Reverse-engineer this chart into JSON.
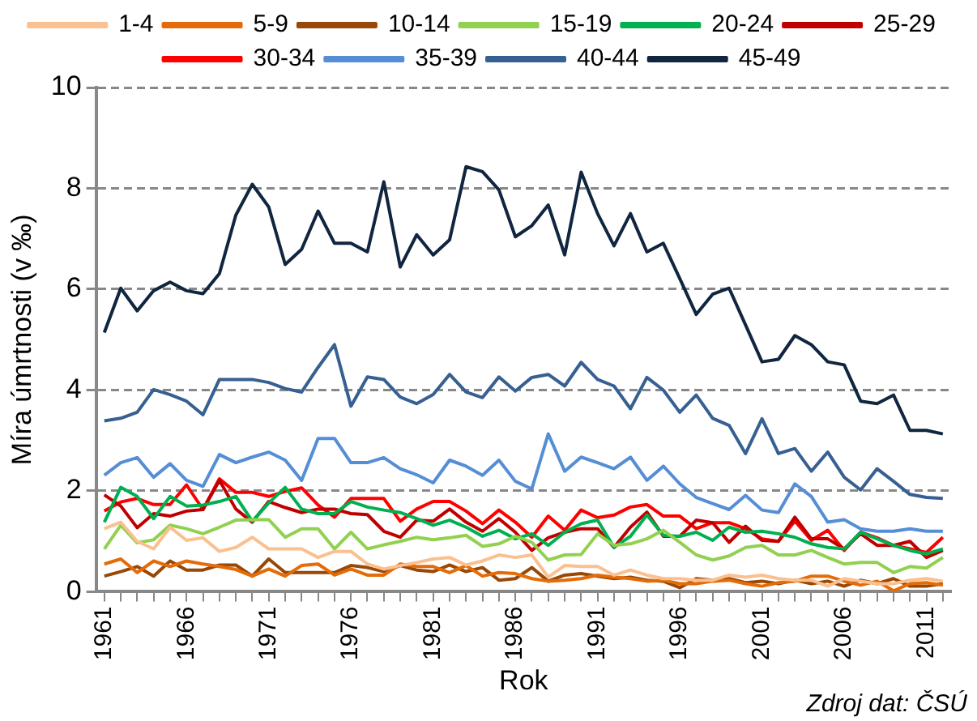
{
  "chart_data": {
    "type": "line",
    "xlabel": "Rok",
    "ylabel": "Míra úmrtnosti (v ‰)",
    "annotations": [
      "Zdroj dat: ČSÚ"
    ],
    "categories": [
      "1961",
      null,
      null,
      null,
      null,
      "1966",
      null,
      null,
      null,
      null,
      "1971",
      null,
      null,
      null,
      null,
      "1976",
      null,
      null,
      null,
      null,
      "1981",
      null,
      null,
      null,
      null,
      "1986",
      null,
      null,
      null,
      null,
      "1991",
      null,
      null,
      null,
      null,
      "1996",
      null,
      null,
      null,
      null,
      "2001",
      null,
      null,
      null,
      null,
      "2006",
      null,
      null,
      null,
      null,
      "2011",
      null
    ],
    "ylim": [
      0,
      10
    ],
    "yticks": [
      0,
      2,
      4,
      6,
      8,
      10
    ],
    "grid": "y",
    "legend": "top",
    "marker": "none",
    "line_style": "solid",
    "series": [
      {
        "name": "1-4",
        "color": "#fac090",
        "values": [
          1.25,
          1.38,
          1.0,
          0.85,
          1.28,
          1.02,
          1.07,
          0.8,
          0.88,
          1.08,
          0.85,
          0.85,
          0.85,
          0.68,
          0.8,
          0.8,
          0.55,
          0.45,
          0.52,
          0.58,
          0.65,
          0.68,
          0.53,
          0.61,
          0.73,
          0.68,
          0.73,
          0.29,
          0.52,
          0.5,
          0.5,
          0.33,
          0.43,
          0.33,
          0.26,
          0.26,
          0.23,
          0.23,
          0.33,
          0.29,
          0.33,
          0.26,
          0.23,
          0.23,
          0.11,
          0.26,
          0.21,
          0.16,
          0.16,
          0.23,
          0.26,
          0.21
        ]
      },
      {
        "name": "5-9",
        "color": "#e36c09",
        "values": [
          0.55,
          0.65,
          0.38,
          0.61,
          0.5,
          0.61,
          0.55,
          0.5,
          0.44,
          0.31,
          0.45,
          0.31,
          0.52,
          0.55,
          0.33,
          0.45,
          0.33,
          0.33,
          0.55,
          0.5,
          0.5,
          0.38,
          0.52,
          0.31,
          0.38,
          0.36,
          0.26,
          0.21,
          0.23,
          0.26,
          0.33,
          0.29,
          0.26,
          0.21,
          0.23,
          0.16,
          0.16,
          0.21,
          0.23,
          0.16,
          0.11,
          0.18,
          0.21,
          0.31,
          0.31,
          0.21,
          0.13,
          0.21,
          0.02,
          0.16,
          0.18,
          0.13
        ]
      },
      {
        "name": "10-14",
        "color": "#984807",
        "values": [
          0.31,
          0.4,
          0.5,
          0.31,
          0.61,
          0.43,
          0.43,
          0.53,
          0.53,
          0.31,
          0.65,
          0.38,
          0.38,
          0.38,
          0.38,
          0.52,
          0.48,
          0.4,
          0.52,
          0.43,
          0.4,
          0.53,
          0.4,
          0.48,
          0.23,
          0.26,
          0.48,
          0.21,
          0.33,
          0.36,
          0.31,
          0.26,
          0.29,
          0.23,
          0.21,
          0.08,
          0.26,
          0.23,
          0.26,
          0.18,
          0.21,
          0.16,
          0.23,
          0.16,
          0.21,
          0.11,
          0.23,
          0.16,
          0.26,
          0.11,
          0.11,
          0.16
        ]
      },
      {
        "name": "15-19",
        "color": "#92d050",
        "values": [
          0.85,
          1.32,
          0.97,
          1.03,
          1.32,
          1.25,
          1.15,
          1.28,
          1.42,
          1.43,
          1.43,
          1.08,
          1.25,
          1.25,
          0.85,
          1.18,
          0.85,
          0.93,
          1.0,
          1.08,
          1.03,
          1.07,
          1.12,
          0.9,
          0.95,
          1.1,
          0.98,
          0.63,
          0.73,
          0.74,
          1.15,
          0.92,
          0.95,
          1.05,
          1.22,
          0.98,
          0.73,
          0.63,
          0.71,
          0.88,
          0.92,
          0.73,
          0.73,
          0.82,
          0.68,
          0.55,
          0.58,
          0.58,
          0.38,
          0.5,
          0.47,
          0.68
        ]
      },
      {
        "name": "20-24",
        "color": "#00b050",
        "values": [
          1.38,
          2.07,
          1.89,
          1.45,
          1.89,
          1.7,
          1.72,
          1.79,
          1.89,
          1.4,
          1.76,
          2.07,
          1.64,
          1.55,
          1.55,
          1.79,
          1.68,
          1.62,
          1.57,
          1.45,
          1.32,
          1.42,
          1.28,
          1.1,
          1.22,
          1.05,
          1.15,
          0.92,
          1.18,
          1.35,
          1.42,
          0.88,
          1.1,
          1.52,
          1.12,
          1.1,
          1.18,
          1.02,
          1.28,
          1.18,
          1.2,
          1.15,
          1.08,
          0.95,
          0.88,
          0.85,
          1.18,
          1.05,
          0.92,
          0.82,
          0.75,
          0.85
        ]
      },
      {
        "name": "25-29",
        "color": "#c00000",
        "values": [
          1.92,
          1.7,
          1.27,
          1.55,
          1.5,
          1.6,
          1.63,
          2.21,
          1.64,
          1.38,
          1.79,
          1.67,
          1.57,
          1.64,
          1.64,
          1.55,
          1.53,
          1.2,
          1.08,
          1.42,
          1.4,
          1.64,
          1.38,
          1.2,
          1.45,
          1.18,
          0.82,
          1.07,
          1.18,
          1.25,
          1.25,
          0.88,
          1.28,
          1.58,
          1.1,
          1.1,
          1.42,
          1.37,
          0.98,
          1.3,
          1.02,
          1.0,
          1.48,
          1.05,
          1.05,
          0.85,
          1.15,
          0.92,
          0.92,
          1.0,
          0.68,
          0.82
        ]
      },
      {
        "name": "30-34",
        "color": "#ff0000",
        "values": [
          1.6,
          1.78,
          1.85,
          1.73,
          1.73,
          2.12,
          1.63,
          2.24,
          1.97,
          1.97,
          1.89,
          1.99,
          2.06,
          1.72,
          1.48,
          1.85,
          1.85,
          1.85,
          1.4,
          1.64,
          1.79,
          1.79,
          1.6,
          1.35,
          1.62,
          1.38,
          1.08,
          1.5,
          1.22,
          1.62,
          1.47,
          1.52,
          1.68,
          1.73,
          1.5,
          1.5,
          1.25,
          1.37,
          1.37,
          1.25,
          1.05,
          1.0,
          1.4,
          1.02,
          1.22,
          0.82,
          1.18,
          1.07,
          0.92,
          0.85,
          0.78,
          1.08
        ]
      },
      {
        "name": "35-39",
        "color": "#558ed5",
        "values": [
          2.31,
          2.56,
          2.66,
          2.27,
          2.54,
          2.21,
          2.09,
          2.72,
          2.56,
          2.67,
          2.77,
          2.61,
          2.21,
          3.04,
          3.04,
          2.56,
          2.56,
          2.66,
          2.44,
          2.32,
          2.16,
          2.61,
          2.49,
          2.31,
          2.61,
          2.19,
          2.04,
          3.13,
          2.39,
          2.67,
          2.56,
          2.44,
          2.67,
          2.21,
          2.49,
          2.14,
          1.87,
          1.75,
          1.63,
          1.91,
          1.62,
          1.57,
          2.14,
          1.89,
          1.38,
          1.43,
          1.25,
          1.2,
          1.2,
          1.25,
          1.2,
          1.2
        ]
      },
      {
        "name": "40-44",
        "color": "#376092",
        "values": [
          3.39,
          3.44,
          3.56,
          4.01,
          3.91,
          3.78,
          3.51,
          4.21,
          4.21,
          4.21,
          4.15,
          4.03,
          3.96,
          4.45,
          4.9,
          3.68,
          4.26,
          4.21,
          3.86,
          3.73,
          3.91,
          4.31,
          3.96,
          3.85,
          4.26,
          3.98,
          4.25,
          4.31,
          4.08,
          4.55,
          4.21,
          4.08,
          3.63,
          4.25,
          4.0,
          3.56,
          3.9,
          3.44,
          3.3,
          2.74,
          3.43,
          2.74,
          2.84,
          2.39,
          2.77,
          2.27,
          2.02,
          2.44,
          2.19,
          1.93,
          1.87,
          1.85
        ]
      },
      {
        "name": "45-49",
        "color": "#10253f",
        "values": [
          5.14,
          6.02,
          5.57,
          5.97,
          6.14,
          5.97,
          5.91,
          6.31,
          7.47,
          8.08,
          7.63,
          6.49,
          6.79,
          7.55,
          6.91,
          6.91,
          6.74,
          8.13,
          6.44,
          7.08,
          6.68,
          6.98,
          8.43,
          8.33,
          7.97,
          7.04,
          7.26,
          7.67,
          6.68,
          8.32,
          7.5,
          6.86,
          7.5,
          6.74,
          6.91,
          6.21,
          5.5,
          5.9,
          6.02,
          5.29,
          4.56,
          4.61,
          5.08,
          4.9,
          4.56,
          4.5,
          3.78,
          3.73,
          3.9,
          3.2,
          3.2,
          3.13
        ]
      }
    ]
  }
}
